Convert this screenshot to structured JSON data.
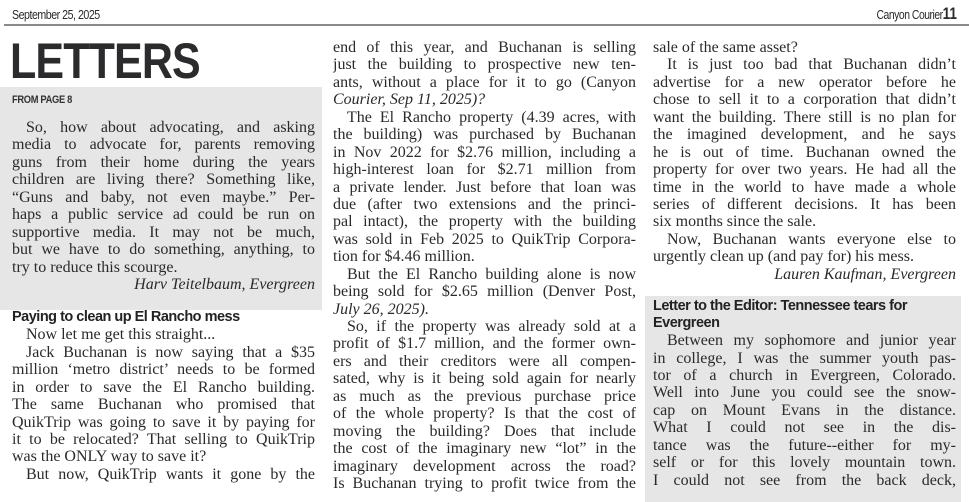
{
  "header": {
    "date": "September 25, 2025",
    "paper": "Canyon Courier",
    "page": "11"
  },
  "section_title": "LETTERS",
  "from_page": "FROM PAGE 8",
  "colors": {
    "box_bg": "#e6e6e6",
    "rule": "#8a8a8a",
    "text": "#2a2a2a"
  },
  "columns": [
    {
      "blocks": [
        {
          "type": "para",
          "lines": [
            "So, how about advocating, and asking",
            "media to advocate for, parents removing",
            "guns from their home during the years",
            "children are living there? Something like,",
            "“Guns and baby, not even maybe.” Per-",
            "haps a public service ad could be run on",
            "supportive media. It may not be much,",
            "but we have to do something, anything, to",
            "try to reduce this scourge."
          ]
        },
        {
          "type": "sig",
          "text": "Harv Teitelbaum, Evergreen"
        },
        {
          "type": "head",
          "lines": [
            "Paying to clean up El Rancho mess"
          ]
        },
        {
          "type": "para",
          "lines": [
            "Now let me get this straight..."
          ]
        },
        {
          "type": "para",
          "lines": [
            "Jack Buchanan is now saying that a $35",
            "million ‘metro district’ needs to be formed",
            "in order to save the El Rancho building.",
            "The same Buchanan who promised that",
            "QuikTrip was going to save it by paying for",
            "it to be relocated? That selling to QuikTrip",
            "was the ONLY way to save it?"
          ]
        },
        {
          "type": "para",
          "lines": [
            "But now, QuikTrip wants it gone by the"
          ],
          "continues": true
        }
      ]
    },
    {
      "blocks": [
        {
          "type": "para",
          "noindent": true,
          "lines": [
            "end of this year, and Buchanan is selling",
            "just the building to prospective new ten-",
            "ants, without a place for it to go (Canyon",
            "Courier, Sep 11, 2025)?"
          ]
        },
        {
          "type": "para",
          "lines": [
            "The El Rancho property (4.39 acres, with",
            "the building) was purchased by Buchanan",
            "in Nov 2022 for $2.76 million, including a",
            "high-interest loan for $2.71 million from",
            "a private lender. Just before that loan was",
            "due (after two extensions and the princi-",
            "pal intact), the property with the building",
            "was sold in Feb 2025 to QuikTrip Corpora-",
            "tion for $4.46 million."
          ]
        },
        {
          "type": "para",
          "lines": [
            "But the El Rancho building alone is now",
            "being sold for $2.65 million (Denver Post,",
            "July 26, 2025)."
          ]
        },
        {
          "type": "para",
          "lines": [
            "So, if the property was already sold at a",
            "profit of $1.7 million, and the former own-",
            "ers and their creditors were all compen-",
            "sated, why is it being sold again for nearly",
            "as much as the previous purchase price",
            "of the whole property? Is that the cost of",
            "moving the building? Does that include",
            "the cost of the imaginary new “lot” in the",
            "imaginary development across the road?",
            "Is Buchanan trying to profit twice from the"
          ],
          "continues": true
        }
      ]
    },
    {
      "blocks": [
        {
          "type": "para",
          "noindent": true,
          "lines": [
            "sale of the same asset?"
          ]
        },
        {
          "type": "para",
          "lines": [
            "It is just too bad that Buchanan didn’t",
            "advertise for a new operator before he",
            "chose to sell it to a corporation that didn’t",
            "want the building. There still is no plan for",
            "the imagined development, and he says",
            "he is out of time. Buchanan owned the",
            "property for over two years. He had all the",
            "time in the world to have made a whole",
            "series of different decisions. It has been",
            "six months since the sale."
          ]
        },
        {
          "type": "para",
          "lines": [
            "Now, Buchanan wants everyone else to",
            "urgently clean up (and pay for) his mess."
          ]
        },
        {
          "type": "sig",
          "text": "Lauren Kaufman, Evergreen"
        },
        {
          "type": "gap"
        },
        {
          "type": "head",
          "lines": [
            "Letter to the Editor: Tennessee tears for",
            "Evergreen"
          ]
        },
        {
          "type": "para",
          "lines": [
            "Between my sophomore and junior year",
            "in college, I was the summer youth pas-",
            "tor of a church in Evergreen, Colorado.",
            "Well into June you could see the snow-",
            "cap on Mount Evans in the distance.",
            "What I could not see in the dis-",
            "tance was the future--either for my-",
            "self or for this lovely mountain town.",
            "I could not see from the back deck,"
          ],
          "continues": true
        }
      ]
    }
  ]
}
